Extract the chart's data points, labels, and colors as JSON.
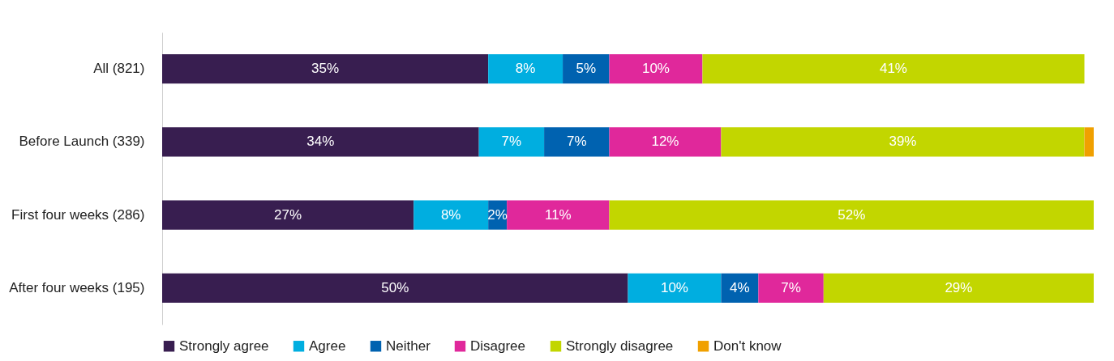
{
  "chart_data": {
    "type": "bar",
    "orientation": "horizontal",
    "stacked": true,
    "legend": "bottom",
    "grid": false,
    "categories": [
      "All (821)",
      "Before Launch (339)",
      "First four weeks (286)",
      "After four weeks (195)"
    ],
    "series": [
      {
        "name": "Strongly agree",
        "color": "#381e50",
        "values": [
          35,
          34,
          27,
          50
        ],
        "value_labels": [
          "35%",
          "34%",
          "27%",
          "50%"
        ]
      },
      {
        "name": "Agree",
        "color": "#00aee0",
        "values": [
          8,
          7,
          8,
          10
        ],
        "value_labels": [
          "8%",
          "7%",
          "8%",
          "10%"
        ]
      },
      {
        "name": "Neither",
        "color": "#0062b0",
        "values": [
          5,
          7,
          2,
          4
        ],
        "value_labels": [
          "5%",
          "7%",
          "2%",
          "4%"
        ]
      },
      {
        "name": "Disagree",
        "color": "#e0289b",
        "values": [
          10,
          12,
          11,
          7
        ],
        "value_labels": [
          "10%",
          "12%",
          "11%",
          "7%"
        ]
      },
      {
        "name": "Strongly disagree",
        "color": "#c2d600",
        "values": [
          41,
          39,
          52,
          29
        ],
        "value_labels": [
          "41%",
          "39%",
          "52%",
          "29%"
        ]
      },
      {
        "name": "Don't know",
        "color": "#f0a000",
        "values": [
          null,
          1,
          null,
          null
        ],
        "value_labels": [
          null,
          null,
          null,
          null
        ]
      }
    ]
  }
}
